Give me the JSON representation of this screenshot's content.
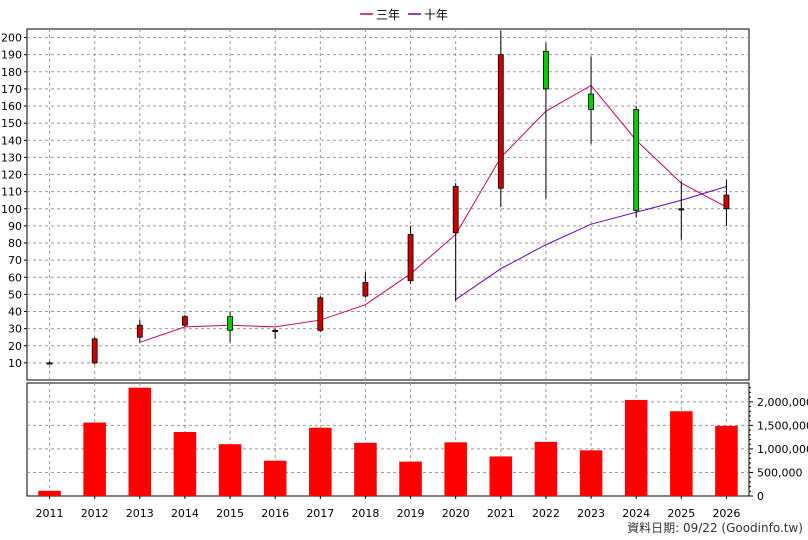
{
  "chart_data": {
    "type": "candlestick",
    "categories": [
      "2011",
      "2012",
      "2013",
      "2014",
      "2015",
      "2016",
      "2017",
      "2018",
      "2019",
      "2020",
      "2021",
      "2022",
      "2023",
      "2024",
      "2025",
      "2026"
    ],
    "price_axis": {
      "range": [
        0,
        205
      ],
      "ticks": [
        10,
        20,
        30,
        40,
        50,
        60,
        70,
        80,
        90,
        100,
        110,
        120,
        130,
        140,
        150,
        160,
        170,
        180,
        190,
        200
      ]
    },
    "volume_axis": {
      "range": [
        0,
        2400000
      ],
      "ticks": [
        0,
        500000,
        1000000,
        1500000,
        2000000
      ],
      "tick_labels": [
        "0",
        "500,000",
        "1,000,000",
        "1,500,000",
        "2,000,000"
      ]
    },
    "candles": [
      {
        "open": 10,
        "close": 10,
        "high": 11,
        "low": 9
      },
      {
        "open": 10,
        "close": 24,
        "high": 25,
        "low": 9
      },
      {
        "open": 25,
        "close": 32,
        "high": 35,
        "low": 22
      },
      {
        "open": 32,
        "close": 37,
        "high": 38,
        "low": 31
      },
      {
        "open": 37,
        "close": 29,
        "high": 40,
        "low": 22
      },
      {
        "open": 29,
        "close": 29,
        "high": 30,
        "low": 24
      },
      {
        "open": 29,
        "close": 48,
        "high": 49,
        "low": 28
      },
      {
        "open": 49,
        "close": 57,
        "high": 63,
        "low": 48
      },
      {
        "open": 58,
        "close": 85,
        "high": 90,
        "low": 56
      },
      {
        "open": 86,
        "close": 113,
        "high": 115,
        "low": 46
      },
      {
        "open": 112,
        "close": 190,
        "high": 204,
        "low": 101
      },
      {
        "open": 192,
        "close": 170,
        "high": 197,
        "low": 106
      },
      {
        "open": 167,
        "close": 158,
        "high": 189,
        "low": 138
      },
      {
        "open": 158,
        "close": 99,
        "high": 160,
        "low": 95
      },
      {
        "open": 100,
        "close": 100,
        "high": 116,
        "low": 82
      },
      {
        "open": 100,
        "close": 108,
        "high": 117,
        "low": 90
      }
    ],
    "volume": [
      110000,
      1560000,
      2300000,
      1360000,
      1100000,
      750000,
      1450000,
      1130000,
      730000,
      1140000,
      840000,
      1150000,
      970000,
      2040000,
      1800000,
      1490000
    ],
    "series": [
      {
        "name": "三年",
        "color": "#cc0066",
        "values": [
          null,
          null,
          22,
          31,
          32,
          31,
          35,
          44,
          62,
          85,
          130,
          157,
          172,
          140,
          115,
          101
        ]
      },
      {
        "name": "十年",
        "color": "#6600cc",
        "values": [
          null,
          null,
          null,
          null,
          null,
          null,
          null,
          null,
          null,
          47,
          65,
          79,
          91,
          98,
          105,
          113
        ]
      }
    ],
    "colors": {
      "up": "#cc0000",
      "down": "#00cc00",
      "volume": "#ff0000"
    }
  },
  "legend": {
    "items": [
      {
        "label": "三年",
        "color": "#cc0066"
      },
      {
        "label": "十年",
        "color": "#6600cc"
      }
    ]
  },
  "footer": {
    "text": "資料日期: 09/22 (Goodinfo.tw)"
  }
}
